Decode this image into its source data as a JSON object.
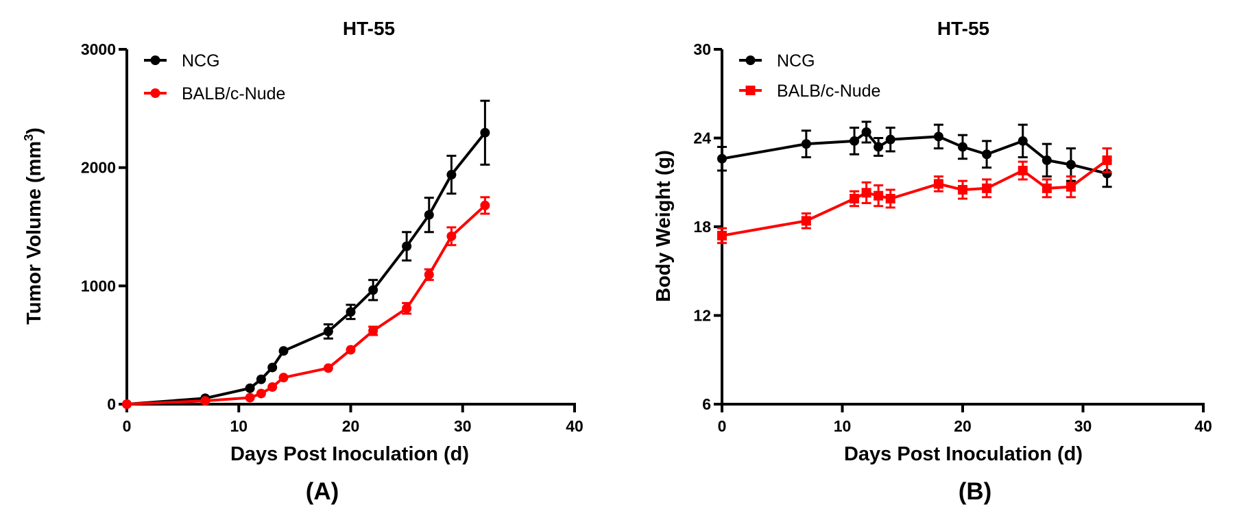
{
  "chart_data": [
    {
      "type": "line",
      "title": "HT-55",
      "panel_label": "(A)",
      "xlabel": "Days Post Inoculation (d)",
      "ylabel_main": "Tumor Volume (mm",
      "ylabel_sup": "3",
      "ylabel_end": ")",
      "xlim": [
        0,
        40
      ],
      "ylim": [
        0,
        3000
      ],
      "xticks": [
        0,
        10,
        20,
        30,
        40
      ],
      "yticks": [
        0,
        1000,
        2000,
        3000
      ],
      "legend_position": "top-left",
      "series": [
        {
          "name": "NCG",
          "color": "#000000",
          "marker": "circle",
          "x": [
            0,
            7,
            11,
            12,
            13,
            14,
            18,
            20,
            22,
            25,
            27,
            29,
            32
          ],
          "y": [
            0,
            50,
            135,
            210,
            310,
            450,
            615,
            780,
            965,
            1335,
            1600,
            1940,
            2295
          ],
          "err": [
            0,
            0,
            0,
            0,
            0,
            0,
            60,
            60,
            85,
            120,
            145,
            160,
            270
          ]
        },
        {
          "name": "BALB/c-Nude",
          "color": "#ff0000",
          "marker": "circle",
          "x": [
            0,
            7,
            11,
            12,
            13,
            14,
            18,
            20,
            22,
            25,
            27,
            29,
            32
          ],
          "y": [
            0,
            28,
            55,
            90,
            145,
            225,
            305,
            460,
            620,
            810,
            1095,
            1420,
            1680
          ],
          "err": [
            0,
            0,
            0,
            0,
            0,
            0,
            0,
            0,
            35,
            45,
            45,
            75,
            70
          ]
        }
      ]
    },
    {
      "type": "line",
      "title": "HT-55",
      "panel_label": "(B)",
      "xlabel": "Days Post Inoculation (d)",
      "ylabel_main": "Body Weight (g)",
      "ylabel_sup": "",
      "ylabel_end": "",
      "xlim": [
        0,
        40
      ],
      "ylim": [
        6,
        30
      ],
      "xticks": [
        0,
        10,
        20,
        30,
        40
      ],
      "yticks": [
        6,
        12,
        18,
        24,
        30
      ],
      "legend_position": "top-left",
      "series": [
        {
          "name": "NCG",
          "color": "#000000",
          "marker": "circle",
          "x": [
            0,
            7,
            11,
            12,
            13,
            14,
            18,
            20,
            22,
            25,
            27,
            29,
            32
          ],
          "y": [
            22.6,
            23.6,
            23.8,
            24.4,
            23.4,
            23.9,
            24.1,
            23.4,
            22.9,
            23.8,
            22.5,
            22.2,
            21.6
          ],
          "err": [
            0.8,
            0.9,
            0.9,
            0.7,
            0.6,
            0.8,
            0.8,
            0.8,
            0.9,
            1.1,
            1.1,
            1.1,
            0.9
          ]
        },
        {
          "name": "BALB/c-Nude",
          "color": "#ff0000",
          "marker": "square",
          "x": [
            0,
            7,
            11,
            12,
            13,
            14,
            18,
            20,
            22,
            25,
            27,
            29,
            32
          ],
          "y": [
            17.4,
            18.4,
            19.9,
            20.3,
            20.1,
            19.9,
            20.9,
            20.5,
            20.6,
            21.8,
            20.6,
            20.7,
            22.5
          ],
          "err": [
            0.5,
            0.5,
            0.5,
            0.7,
            0.7,
            0.6,
            0.5,
            0.6,
            0.6,
            0.6,
            0.6,
            0.7,
            0.8
          ]
        }
      ]
    }
  ]
}
